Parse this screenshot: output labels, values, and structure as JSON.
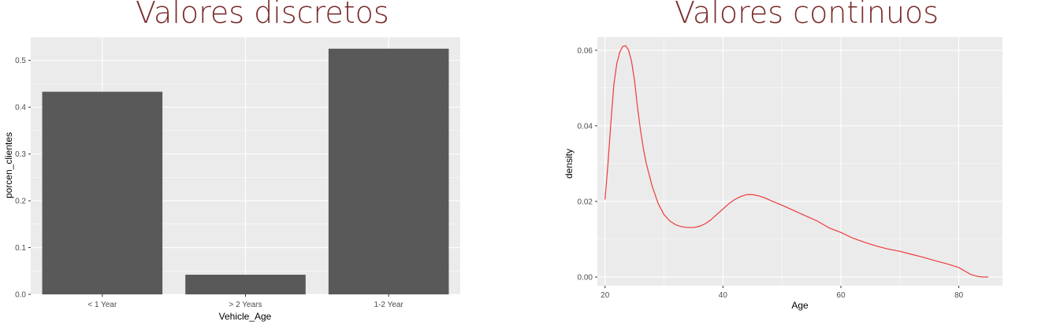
{
  "chart_data": [
    {
      "type": "bar",
      "title": "Valores discretos",
      "categories": [
        "< 1 Year",
        "> 2 Years",
        "1-2 Year"
      ],
      "values": [
        0.433,
        0.042,
        0.525
      ],
      "xlabel": "Vehicle_Age",
      "ylabel": "porcen_clientes",
      "ylim": [
        0,
        0.55
      ],
      "yticks": [
        0.0,
        0.1,
        0.2,
        0.3,
        0.4,
        0.5
      ],
      "ytick_labels": [
        "0.0",
        "0.1",
        "0.2",
        "0.3",
        "0.4",
        "0.5"
      ],
      "grid": true,
      "colors": {
        "bar": "#595959",
        "panel": "#ebebeb",
        "grid": "#ffffff"
      }
    },
    {
      "type": "line",
      "title": "Valores continuos",
      "xlabel": "Age",
      "ylabel": "density",
      "xlim": [
        18.7,
        87.4
      ],
      "ylim": [
        -0.0023,
        0.0635
      ],
      "xticks": [
        20,
        40,
        60,
        80
      ],
      "xtick_labels": [
        "20",
        "40",
        "60",
        "80"
      ],
      "yticks": [
        0.0,
        0.02,
        0.04,
        0.06
      ],
      "ytick_labels": [
        "0.00",
        "0.02",
        "0.04",
        "0.06"
      ],
      "grid": true,
      "series": [
        {
          "x": [
            20,
            20.5,
            21,
            21.5,
            22,
            22.5,
            23,
            23.5,
            24,
            24.5,
            25,
            25.5,
            26,
            26.5,
            27,
            28,
            29,
            30,
            31,
            32,
            33,
            34,
            35,
            36,
            37,
            38,
            39,
            40,
            41,
            42,
            43,
            44,
            45,
            46,
            47,
            48,
            50,
            52,
            54,
            56,
            58,
            60,
            62,
            64,
            66,
            68,
            70,
            72,
            74,
            76,
            78,
            80,
            81,
            82,
            83,
            84,
            85
          ],
          "y": [
            0.0205,
            0.03,
            0.041,
            0.051,
            0.0565,
            0.0595,
            0.061,
            0.0612,
            0.06,
            0.057,
            0.052,
            0.045,
            0.039,
            0.034,
            0.03,
            0.024,
            0.0195,
            0.0165,
            0.0148,
            0.0138,
            0.0133,
            0.0131,
            0.0131,
            0.0134,
            0.0141,
            0.0152,
            0.0166,
            0.018,
            0.0194,
            0.0205,
            0.0213,
            0.0218,
            0.0218,
            0.0215,
            0.021,
            0.0203,
            0.019,
            0.0176,
            0.0162,
            0.0148,
            0.013,
            0.0118,
            0.0103,
            0.0092,
            0.0082,
            0.0074,
            0.0068,
            0.006,
            0.0052,
            0.0043,
            0.0035,
            0.0025,
            0.0016,
            0.0007,
            0.0002,
            0.0,
            0.0
          ]
        }
      ],
      "colors": {
        "line": "#ee3b3b",
        "panel": "#ebebeb",
        "grid": "#ffffff"
      }
    }
  ]
}
